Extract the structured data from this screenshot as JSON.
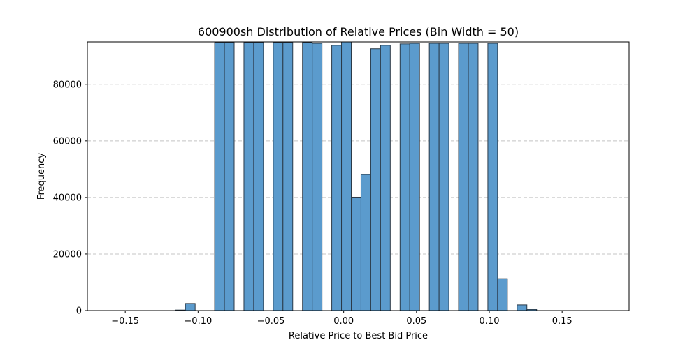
{
  "chart_data": {
    "type": "bar",
    "title": "600900sh Distribution of Relative Prices (Bin Width = 50)",
    "xlabel": "Relative Price to Best Bid Price",
    "ylabel": "Frequency",
    "xlim": [
      -0.176,
      0.196
    ],
    "ylim": [
      0,
      95000
    ],
    "xticks": [
      -0.15,
      -0.1,
      -0.05,
      0.0,
      0.05,
      0.1,
      0.15
    ],
    "xtick_labels": [
      "−0.15",
      "−0.10",
      "−0.05",
      "0.00",
      "0.05",
      "0.10",
      "0.15"
    ],
    "yticks": [
      0,
      20000,
      40000,
      60000,
      80000
    ],
    "ytick_labels": [
      "0",
      "20000",
      "40000",
      "60000",
      "80000"
    ],
    "grid": "y-dashed",
    "bar_color": "#5b9bcd",
    "edge_color": "#2b3a48",
    "bins": [
      {
        "x0": -0.1623,
        "x1": -0.1556,
        "value": 0
      },
      {
        "x0": -0.1556,
        "x1": -0.1489,
        "value": 0
      },
      {
        "x0": -0.1489,
        "x1": -0.1422,
        "value": 0
      },
      {
        "x0": -0.1422,
        "x1": -0.1355,
        "value": 0
      },
      {
        "x0": -0.1355,
        "x1": -0.1288,
        "value": 0
      },
      {
        "x0": -0.1288,
        "x1": -0.1221,
        "value": 0
      },
      {
        "x0": -0.1221,
        "x1": -0.1154,
        "value": 0
      },
      {
        "x0": -0.1154,
        "x1": -0.1087,
        "value": 200
      },
      {
        "x0": -0.1087,
        "x1": -0.102,
        "value": 2500
      },
      {
        "x0": -0.102,
        "x1": -0.0953,
        "value": 0
      },
      {
        "x0": -0.0953,
        "x1": -0.0886,
        "value": 0
      },
      {
        "x0": -0.0886,
        "x1": -0.0819,
        "value": 94800
      },
      {
        "x0": -0.0819,
        "x1": -0.0752,
        "value": 94800
      },
      {
        "x0": -0.0752,
        "x1": -0.0685,
        "value": 0
      },
      {
        "x0": -0.0685,
        "x1": -0.0618,
        "value": 94800
      },
      {
        "x0": -0.0618,
        "x1": -0.0551,
        "value": 94800
      },
      {
        "x0": -0.0551,
        "x1": -0.0484,
        "value": 0
      },
      {
        "x0": -0.0484,
        "x1": -0.0417,
        "value": 94800
      },
      {
        "x0": -0.0417,
        "x1": -0.035,
        "value": 94800
      },
      {
        "x0": -0.035,
        "x1": -0.0283,
        "value": 0
      },
      {
        "x0": -0.0283,
        "x1": -0.0216,
        "value": 94800
      },
      {
        "x0": -0.0216,
        "x1": -0.0149,
        "value": 94500
      },
      {
        "x0": -0.0149,
        "x1": -0.0082,
        "value": 0
      },
      {
        "x0": -0.0082,
        "x1": -0.0015,
        "value": 93800
      },
      {
        "x0": -0.0015,
        "x1": 0.0052,
        "value": 95000
      },
      {
        "x0": 0.0052,
        "x1": 0.0119,
        "value": 40100
      },
      {
        "x0": 0.0119,
        "x1": 0.0186,
        "value": 48100
      },
      {
        "x0": 0.0186,
        "x1": 0.0253,
        "value": 92600
      },
      {
        "x0": 0.0253,
        "x1": 0.032,
        "value": 93800
      },
      {
        "x0": 0.032,
        "x1": 0.0387,
        "value": 0
      },
      {
        "x0": 0.0387,
        "x1": 0.0454,
        "value": 94300
      },
      {
        "x0": 0.0454,
        "x1": 0.0521,
        "value": 94500
      },
      {
        "x0": 0.0521,
        "x1": 0.0588,
        "value": 0
      },
      {
        "x0": 0.0588,
        "x1": 0.0655,
        "value": 94500
      },
      {
        "x0": 0.0655,
        "x1": 0.0722,
        "value": 94500
      },
      {
        "x0": 0.0722,
        "x1": 0.0789,
        "value": 0
      },
      {
        "x0": 0.0789,
        "x1": 0.0856,
        "value": 94500
      },
      {
        "x0": 0.0856,
        "x1": 0.0923,
        "value": 94500
      },
      {
        "x0": 0.0923,
        "x1": 0.099,
        "value": 0
      },
      {
        "x0": 0.099,
        "x1": 0.1057,
        "value": 94500
      },
      {
        "x0": 0.1057,
        "x1": 0.1124,
        "value": 11300
      },
      {
        "x0": 0.1124,
        "x1": 0.1191,
        "value": 0
      },
      {
        "x0": 0.1191,
        "x1": 0.1258,
        "value": 2000
      },
      {
        "x0": 0.1258,
        "x1": 0.1325,
        "value": 400
      },
      {
        "x0": 0.1325,
        "x1": 0.1392,
        "value": 0
      },
      {
        "x0": 0.1392,
        "x1": 0.1459,
        "value": 0
      },
      {
        "x0": 0.1459,
        "x1": 0.1526,
        "value": 0
      },
      {
        "x0": 0.1526,
        "x1": 0.1593,
        "value": 0
      },
      {
        "x0": 0.1593,
        "x1": 0.166,
        "value": 0
      },
      {
        "x0": 0.166,
        "x1": 0.1727,
        "value": 0
      },
      {
        "x0": 0.1727,
        "x1": 0.1794,
        "value": 0
      }
    ]
  }
}
